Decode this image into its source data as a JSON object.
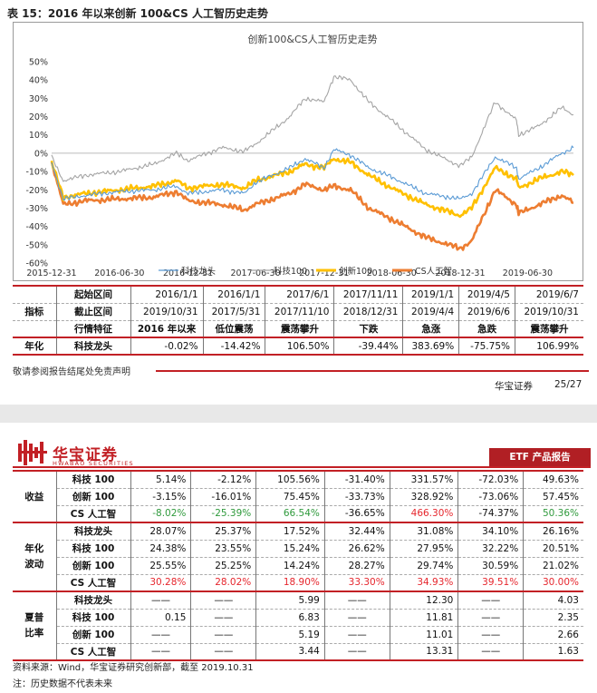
{
  "caption": "表 15：2016 年以来创新 100&CS 人工智历史走势",
  "chart_data": {
    "type": "line",
    "title": "创新100&CS人工智历史走势",
    "ylim": [
      -60,
      50
    ],
    "y_ticks": [
      "50%",
      "40%",
      "30%",
      "20%",
      "10%",
      "0%",
      "-10%",
      "-20%",
      "-30%",
      "-40%",
      "-50%",
      "-60%"
    ],
    "x_ticks": [
      "2015-12-31",
      "2016-06-30",
      "2016-12-31",
      "2017-06-30",
      "2017-12-31",
      "2018-06-30",
      "2018-12-31",
      "2019-06-30"
    ],
    "x_range": [
      "2015-12-31",
      "2019-10-31"
    ],
    "series": [
      {
        "name": "科技龙头",
        "color": "#5b9bd5",
        "points": [
          [
            "2015-12-31",
            -5
          ],
          [
            "2016-01-31",
            -25
          ],
          [
            "2016-03-31",
            -23
          ],
          [
            "2016-06-30",
            -21
          ],
          [
            "2016-09-30",
            -20
          ],
          [
            "2016-11-30",
            -18
          ],
          [
            "2016-12-31",
            -22
          ],
          [
            "2017-03-31",
            -20
          ],
          [
            "2017-05-31",
            -22
          ],
          [
            "2017-06-30",
            -16
          ],
          [
            "2017-09-30",
            -8
          ],
          [
            "2017-11-10",
            -3
          ],
          [
            "2017-12-31",
            -8
          ],
          [
            "2018-01-26",
            2
          ],
          [
            "2018-03-12",
            -1
          ],
          [
            "2018-04-30",
            -8
          ],
          [
            "2018-06-30",
            -13
          ],
          [
            "2018-09-30",
            -22
          ],
          [
            "2018-12-31",
            -25
          ],
          [
            "2019-01-31",
            -22
          ],
          [
            "2019-04-04",
            -2
          ],
          [
            "2019-05-31",
            -8
          ],
          [
            "2019-06-06",
            -14
          ],
          [
            "2019-07-31",
            -8
          ],
          [
            "2019-09-30",
            0
          ],
          [
            "2019-10-31",
            3
          ]
        ]
      },
      {
        "name": "科技100",
        "color": "#a5a5a5",
        "points": [
          [
            "2015-12-31",
            -2
          ],
          [
            "2016-01-31",
            -15
          ],
          [
            "2016-03-31",
            -12
          ],
          [
            "2016-06-30",
            -10
          ],
          [
            "2016-09-30",
            -6
          ],
          [
            "2016-11-30",
            0
          ],
          [
            "2016-12-31",
            -4
          ],
          [
            "2017-03-31",
            3
          ],
          [
            "2017-05-31",
            1
          ],
          [
            "2017-06-30",
            5
          ],
          [
            "2017-09-30",
            20
          ],
          [
            "2017-11-10",
            30
          ],
          [
            "2017-12-31",
            28
          ],
          [
            "2018-01-26",
            42
          ],
          [
            "2018-03-12",
            40
          ],
          [
            "2018-04-30",
            28
          ],
          [
            "2018-06-30",
            18
          ],
          [
            "2018-09-30",
            2
          ],
          [
            "2018-12-31",
            -7
          ],
          [
            "2019-01-31",
            -2
          ],
          [
            "2019-04-04",
            28
          ],
          [
            "2019-05-31",
            18
          ],
          [
            "2019-06-06",
            10
          ],
          [
            "2019-07-31",
            15
          ],
          [
            "2019-09-30",
            25
          ],
          [
            "2019-10-31",
            21
          ]
        ]
      },
      {
        "name": "创新100",
        "color": "#ffc000",
        "points": [
          [
            "2015-12-31",
            -5
          ],
          [
            "2016-01-31",
            -24
          ],
          [
            "2016-03-31",
            -22
          ],
          [
            "2016-06-30",
            -20
          ],
          [
            "2016-09-30",
            -18
          ],
          [
            "2016-11-30",
            -15
          ],
          [
            "2016-12-31",
            -19
          ],
          [
            "2017-03-31",
            -17
          ],
          [
            "2017-05-31",
            -19
          ],
          [
            "2017-06-30",
            -15
          ],
          [
            "2017-09-30",
            -10
          ],
          [
            "2017-11-10",
            -6
          ],
          [
            "2017-12-31",
            -8
          ],
          [
            "2018-01-26",
            -3
          ],
          [
            "2018-03-12",
            -5
          ],
          [
            "2018-04-30",
            -12
          ],
          [
            "2018-06-30",
            -19
          ],
          [
            "2018-09-30",
            -28
          ],
          [
            "2018-12-31",
            -34
          ],
          [
            "2019-01-31",
            -30
          ],
          [
            "2019-04-04",
            -8
          ],
          [
            "2019-05-31",
            -14
          ],
          [
            "2019-06-06",
            -19
          ],
          [
            "2019-07-31",
            -14
          ],
          [
            "2019-09-30",
            -10
          ],
          [
            "2019-10-31",
            -12
          ]
        ]
      },
      {
        "name": "CS人工智",
        "color": "#ed7d31",
        "points": [
          [
            "2015-12-31",
            -5
          ],
          [
            "2016-01-31",
            -28
          ],
          [
            "2016-03-31",
            -26
          ],
          [
            "2016-06-30",
            -25
          ],
          [
            "2016-09-30",
            -24
          ],
          [
            "2016-11-30",
            -21
          ],
          [
            "2016-12-31",
            -26
          ],
          [
            "2017-03-31",
            -28
          ],
          [
            "2017-05-31",
            -31
          ],
          [
            "2017-06-30",
            -28
          ],
          [
            "2017-09-30",
            -22
          ],
          [
            "2017-11-10",
            -17
          ],
          [
            "2017-12-31",
            -20
          ],
          [
            "2018-01-26",
            -18
          ],
          [
            "2018-03-12",
            -20
          ],
          [
            "2018-04-30",
            -30
          ],
          [
            "2018-06-30",
            -36
          ],
          [
            "2018-09-30",
            -46
          ],
          [
            "2018-12-31",
            -52
          ],
          [
            "2019-01-31",
            -48
          ],
          [
            "2019-04-04",
            -20
          ],
          [
            "2019-05-31",
            -28
          ],
          [
            "2019-06-06",
            -33
          ],
          [
            "2019-07-31",
            -28
          ],
          [
            "2019-09-30",
            -23
          ],
          [
            "2019-10-31",
            -27
          ]
        ]
      }
    ]
  },
  "table1": {
    "row_start": {
      "label": "起始区间",
      "values": [
        "2016/1/1",
        "2016/1/1",
        "2017/6/1",
        "2017/11/11",
        "2019/1/1",
        "2019/4/5",
        "2019/6/7"
      ]
    },
    "row_end": {
      "group": "指标",
      "label": "截止区间",
      "values": [
        "2019/10/31",
        "2017/5/31",
        "2017/11/10",
        "2018/12/31",
        "2019/4/4",
        "2019/6/6",
        "2019/10/31"
      ]
    },
    "row_feature": {
      "label": "行情特征",
      "values": [
        "2016 年以来",
        "低位震荡",
        "震荡攀升",
        "下跌",
        "急涨",
        "急跌",
        "震荡攀升"
      ]
    },
    "row_annual": {
      "group": "年化",
      "label": "科技龙头",
      "values": [
        "-0.02%",
        "-14.42%",
        "106.50%",
        "-39.44%",
        "383.69%",
        "-75.75%",
        "106.99%"
      ]
    }
  },
  "disclaimer": "敬请参阅报告结尾处免责声明",
  "footer": {
    "company": "华宝证券",
    "page": "25/27"
  },
  "header2": {
    "logo_cn": "华宝证券",
    "logo_en": "HWABAO SECURITIES",
    "report_tag": "ETF 产品报告"
  },
  "table2": {
    "returns": {
      "group": "收益",
      "rows": [
        {
          "label": "科技 100",
          "values": [
            "5.14%",
            "-2.12%",
            "105.56%",
            "-31.40%",
            "331.57%",
            "-72.03%",
            "49.63%"
          ]
        },
        {
          "label": "创新 100",
          "values": [
            "-3.15%",
            "-16.01%",
            "75.45%",
            "-33.73%",
            "328.92%",
            "-73.06%",
            "57.45%"
          ]
        },
        {
          "label": "CS 人工智",
          "values": [
            "-8.02%",
            "-25.39%",
            "66.54%",
            "-36.65%",
            "466.30%",
            "-74.37%",
            "50.36%"
          ]
        }
      ]
    },
    "volatility": {
      "group": "年化\n波动",
      "rows": [
        {
          "label": "科技龙头",
          "values": [
            "28.07%",
            "25.37%",
            "17.52%",
            "32.44%",
            "31.08%",
            "34.10%",
            "26.16%"
          ]
        },
        {
          "label": "科技 100",
          "values": [
            "24.38%",
            "23.55%",
            "15.24%",
            "26.62%",
            "27.95%",
            "32.22%",
            "20.51%"
          ]
        },
        {
          "label": "创新 100",
          "values": [
            "25.55%",
            "25.25%",
            "14.24%",
            "28.27%",
            "29.74%",
            "30.59%",
            "21.02%"
          ]
        },
        {
          "label": "CS 人工智",
          "values": [
            "30.28%",
            "28.02%",
            "18.90%",
            "33.30%",
            "34.93%",
            "39.51%",
            "30.00%"
          ]
        }
      ]
    },
    "sharpe": {
      "group": "夏普\n比率",
      "rows": [
        {
          "label": "科技龙头",
          "values": [
            "——",
            "——",
            "5.99",
            "——",
            "12.30",
            "——",
            "4.03"
          ]
        },
        {
          "label": "科技 100",
          "values": [
            "0.15",
            "——",
            "6.83",
            "——",
            "11.81",
            "——",
            "2.35"
          ]
        },
        {
          "label": "创新 100",
          "values": [
            "——",
            "——",
            "5.19",
            "——",
            "11.01",
            "——",
            "2.66"
          ]
        },
        {
          "label": "CS 人工智",
          "values": [
            "——",
            "——",
            "3.44",
            "——",
            "13.31",
            "——",
            "1.63"
          ]
        }
      ]
    }
  },
  "source": "资料来源：Wind，华宝证券研究创新部，截至 2019.10.31",
  "note": "注：历史数据不代表未来"
}
